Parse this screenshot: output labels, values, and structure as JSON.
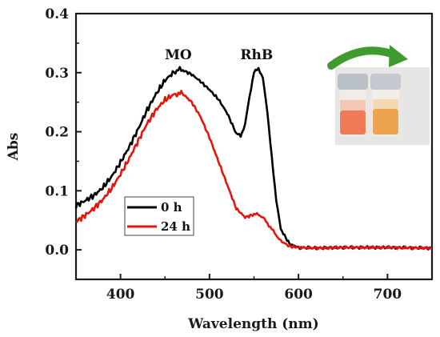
{
  "chart_data": {
    "type": "line",
    "title": "",
    "xlabel": "Wavelength (nm)",
    "ylabel": "Abs",
    "xlim": [
      350,
      750
    ],
    "ylim": [
      -0.05,
      0.4
    ],
    "x_ticks": [
      400,
      500,
      600,
      700
    ],
    "y_ticks": [
      0.0,
      0.1,
      0.2,
      0.3,
      0.4
    ],
    "y_tick_labels": [
      "0.0",
      "0.1",
      "0.2",
      "0.3",
      "0.4"
    ],
    "grid": false,
    "legend_position": "lower-left",
    "series": [
      {
        "name": "0 h",
        "color": "#000000",
        "x": [
          350,
          360,
          370,
          380,
          390,
          400,
          410,
          420,
          430,
          440,
          450,
          460,
          465,
          470,
          480,
          490,
          500,
          510,
          520,
          530,
          535,
          540,
          545,
          550,
          555,
          560,
          565,
          570,
          575,
          580,
          590,
          600,
          620,
          650,
          700,
          750
        ],
        "y": [
          0.075,
          0.083,
          0.092,
          0.105,
          0.124,
          0.148,
          0.175,
          0.205,
          0.237,
          0.264,
          0.287,
          0.301,
          0.305,
          0.304,
          0.297,
          0.285,
          0.271,
          0.255,
          0.231,
          0.197,
          0.193,
          0.212,
          0.26,
          0.3,
          0.308,
          0.29,
          0.235,
          0.155,
          0.085,
          0.035,
          0.01,
          0.004,
          0.003,
          0.004,
          0.004,
          0.003
        ]
      },
      {
        "name": "24 h",
        "color": "#e8140c",
        "x": [
          350,
          360,
          370,
          380,
          390,
          400,
          410,
          420,
          430,
          440,
          450,
          460,
          465,
          470,
          480,
          490,
          500,
          510,
          520,
          530,
          540,
          550,
          555,
          560,
          565,
          570,
          575,
          580,
          590,
          600,
          620,
          650,
          700,
          750
        ],
        "y": [
          0.048,
          0.058,
          0.07,
          0.085,
          0.104,
          0.128,
          0.155,
          0.185,
          0.214,
          0.237,
          0.254,
          0.263,
          0.265,
          0.264,
          0.25,
          0.225,
          0.19,
          0.15,
          0.11,
          0.07,
          0.055,
          0.06,
          0.06,
          0.055,
          0.045,
          0.035,
          0.025,
          0.015,
          0.006,
          0.004,
          0.003,
          0.004,
          0.004,
          0.003
        ]
      }
    ],
    "annotations": [
      {
        "text": "MO",
        "x": 465,
        "y": 0.32
      },
      {
        "text": "RhB",
        "x": 553,
        "y": 0.32
      }
    ],
    "legend": [
      {
        "label": "0 h",
        "color": "#000000"
      },
      {
        "label": "24 h",
        "color": "#e8140c"
      }
    ]
  }
}
